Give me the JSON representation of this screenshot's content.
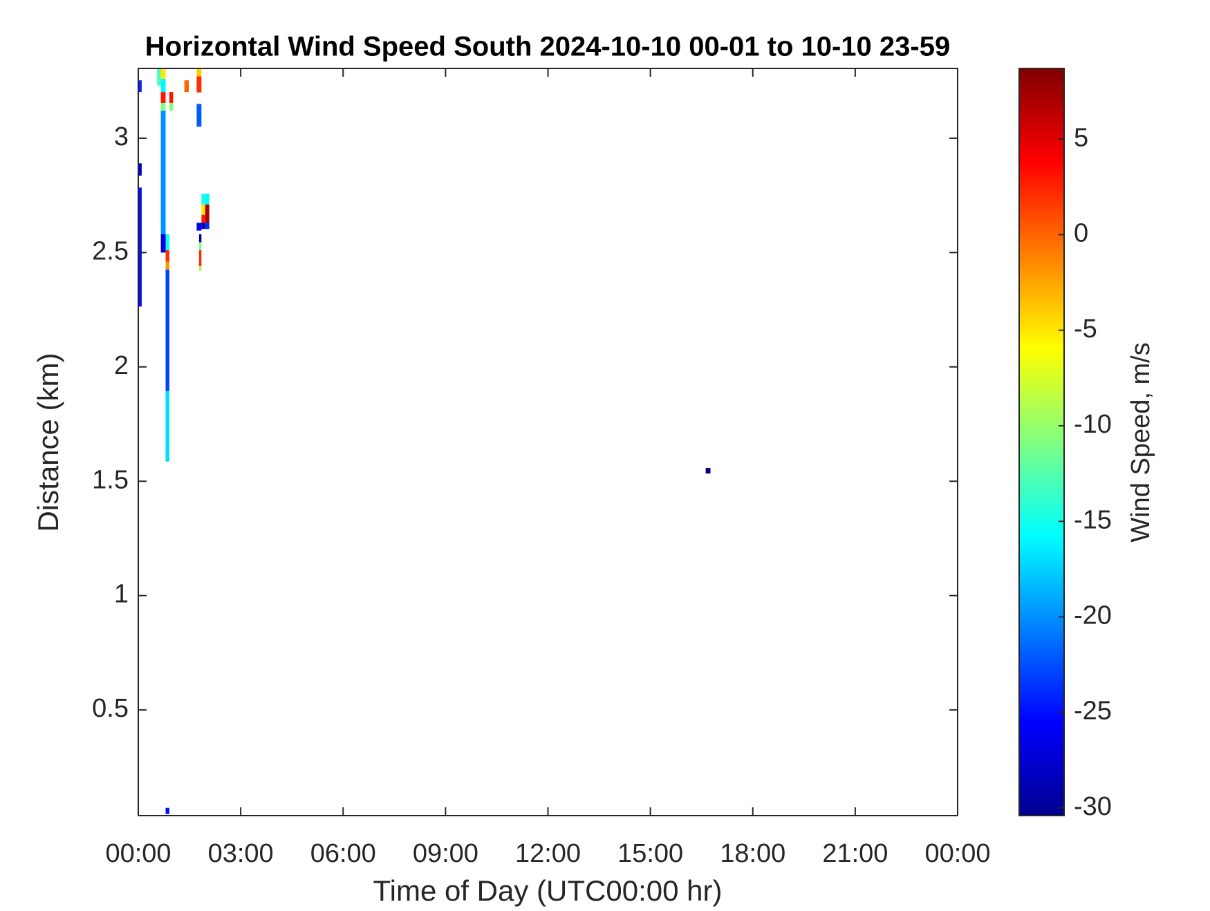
{
  "chart_data": {
    "type": "heatmap",
    "title": "Horizontal Wind Speed South 2024-10-10 00-01 to 10-10 23-59",
    "x_label": "Time of Day (UTC00:00 hr)",
    "y_label": "Distance (km)",
    "xlim": [
      0,
      24
    ],
    "xticks": [
      {
        "value": 0,
        "label": "00:00"
      },
      {
        "value": 3,
        "label": "03:00"
      },
      {
        "value": 6,
        "label": "06:00"
      },
      {
        "value": 9,
        "label": "09:00"
      },
      {
        "value": 12,
        "label": "12:00"
      },
      {
        "value": 15,
        "label": "15:00"
      },
      {
        "value": 18,
        "label": "18:00"
      },
      {
        "value": 21,
        "label": "21:00"
      },
      {
        "value": 24,
        "label": "00:00"
      }
    ],
    "ylim": [
      0.038,
      3.305
    ],
    "yticks": [
      0.5,
      1,
      1.5,
      2,
      2.5,
      3
    ],
    "colorbar": {
      "label": "Wind Speed, m/s",
      "colormap": "jet",
      "lim": [
        -30.4,
        8.7
      ],
      "ticks": [
        -30,
        -25,
        -20,
        -15,
        -10,
        -5,
        0,
        5
      ]
    },
    "cells": [
      {
        "x0": 0,
        "x1": 0.1,
        "y0": 3.202,
        "y1": 3.253,
        "value": -24
      },
      {
        "x0": 0,
        "x1": 0.1,
        "y0": 2.836,
        "y1": 2.89,
        "value": -27
      },
      {
        "x0": 0,
        "x1": 0.1,
        "y0": 2.264,
        "y1": 2.784,
        "value": -25
      },
      {
        "x0": 0.55,
        "x1": 0.66,
        "y0": 3.23,
        "y1": 3.305,
        "value": -13
      },
      {
        "x0": 0.66,
        "x1": 0.8,
        "y0": 3.26,
        "y1": 3.305,
        "value": -5
      },
      {
        "x0": 0.66,
        "x1": 0.8,
        "y0": 3.202,
        "y1": 3.26,
        "value": -16
      },
      {
        "x0": 0.66,
        "x1": 0.8,
        "y0": 3.154,
        "y1": 3.202,
        "value": 3
      },
      {
        "x0": 0.66,
        "x1": 0.8,
        "y0": 3.12,
        "y1": 3.154,
        "value": -11
      },
      {
        "x0": 0.66,
        "x1": 0.8,
        "y0": 2.58,
        "y1": 3.12,
        "value": -20
      },
      {
        "x0": 0.66,
        "x1": 0.8,
        "y0": 2.5,
        "y1": 2.58,
        "value": -27
      },
      {
        "x0": 0.8,
        "x1": 0.91,
        "y0": 2.51,
        "y1": 2.58,
        "value": -15
      },
      {
        "x0": 0.8,
        "x1": 0.91,
        "y0": 2.46,
        "y1": 2.51,
        "value": 2
      },
      {
        "x0": 0.8,
        "x1": 0.91,
        "y0": 2.425,
        "y1": 2.46,
        "value": -2
      },
      {
        "x0": 0.8,
        "x1": 0.91,
        "y0": 1.894,
        "y1": 2.425,
        "value": -23
      },
      {
        "x0": 0.8,
        "x1": 0.91,
        "y0": 1.586,
        "y1": 1.894,
        "value": -17
      },
      {
        "x0": 0.8,
        "x1": 0.91,
        "y0": 0.045,
        "y1": 0.072,
        "value": -25
      },
      {
        "x0": 0.91,
        "x1": 1.02,
        "y0": 3.154,
        "y1": 3.202,
        "value": 3
      },
      {
        "x0": 0.91,
        "x1": 1.02,
        "y0": 3.12,
        "y1": 3.154,
        "value": -11
      },
      {
        "x0": 1.35,
        "x1": 1.48,
        "y0": 3.202,
        "y1": 3.253,
        "value": 0
      },
      {
        "x0": 1.71,
        "x1": 1.85,
        "y0": 3.27,
        "y1": 3.305,
        "value": -4
      },
      {
        "x0": 1.71,
        "x1": 1.85,
        "y0": 3.2,
        "y1": 3.27,
        "value": 2
      },
      {
        "x0": 1.71,
        "x1": 1.85,
        "y0": 3.05,
        "y1": 3.15,
        "value": -22
      },
      {
        "x0": 1.71,
        "x1": 1.85,
        "y0": 2.596,
        "y1": 2.63,
        "value": -26
      },
      {
        "x0": 1.78,
        "x1": 1.85,
        "y0": 2.545,
        "y1": 2.58,
        "value": -29
      },
      {
        "x0": 1.78,
        "x1": 1.85,
        "y0": 2.51,
        "y1": 2.545,
        "value": -11
      },
      {
        "x0": 1.78,
        "x1": 1.85,
        "y0": 2.44,
        "y1": 2.51,
        "value": 2
      },
      {
        "x0": 1.78,
        "x1": 1.85,
        "y0": 2.42,
        "y1": 2.44,
        "value": -9
      },
      {
        "x0": 1.85,
        "x1": 1.96,
        "y0": 2.71,
        "y1": 2.757,
        "value": -15
      },
      {
        "x0": 1.85,
        "x1": 1.96,
        "y0": 2.665,
        "y1": 2.71,
        "value": -5
      },
      {
        "x0": 1.85,
        "x1": 1.96,
        "y0": 2.63,
        "y1": 2.665,
        "value": 3
      },
      {
        "x0": 1.85,
        "x1": 1.96,
        "y0": 2.603,
        "y1": 2.63,
        "value": -29
      },
      {
        "x0": 1.96,
        "x1": 2.08,
        "y0": 2.71,
        "y1": 2.757,
        "value": -16
      },
      {
        "x0": 1.96,
        "x1": 2.08,
        "y0": 2.63,
        "y1": 2.71,
        "value": 7
      },
      {
        "x0": 1.96,
        "x1": 2.08,
        "y0": 2.603,
        "y1": 2.63,
        "value": -24
      },
      {
        "x0": 16.62,
        "x1": 16.76,
        "y0": 1.534,
        "y1": 1.558,
        "value": -30
      }
    ]
  }
}
